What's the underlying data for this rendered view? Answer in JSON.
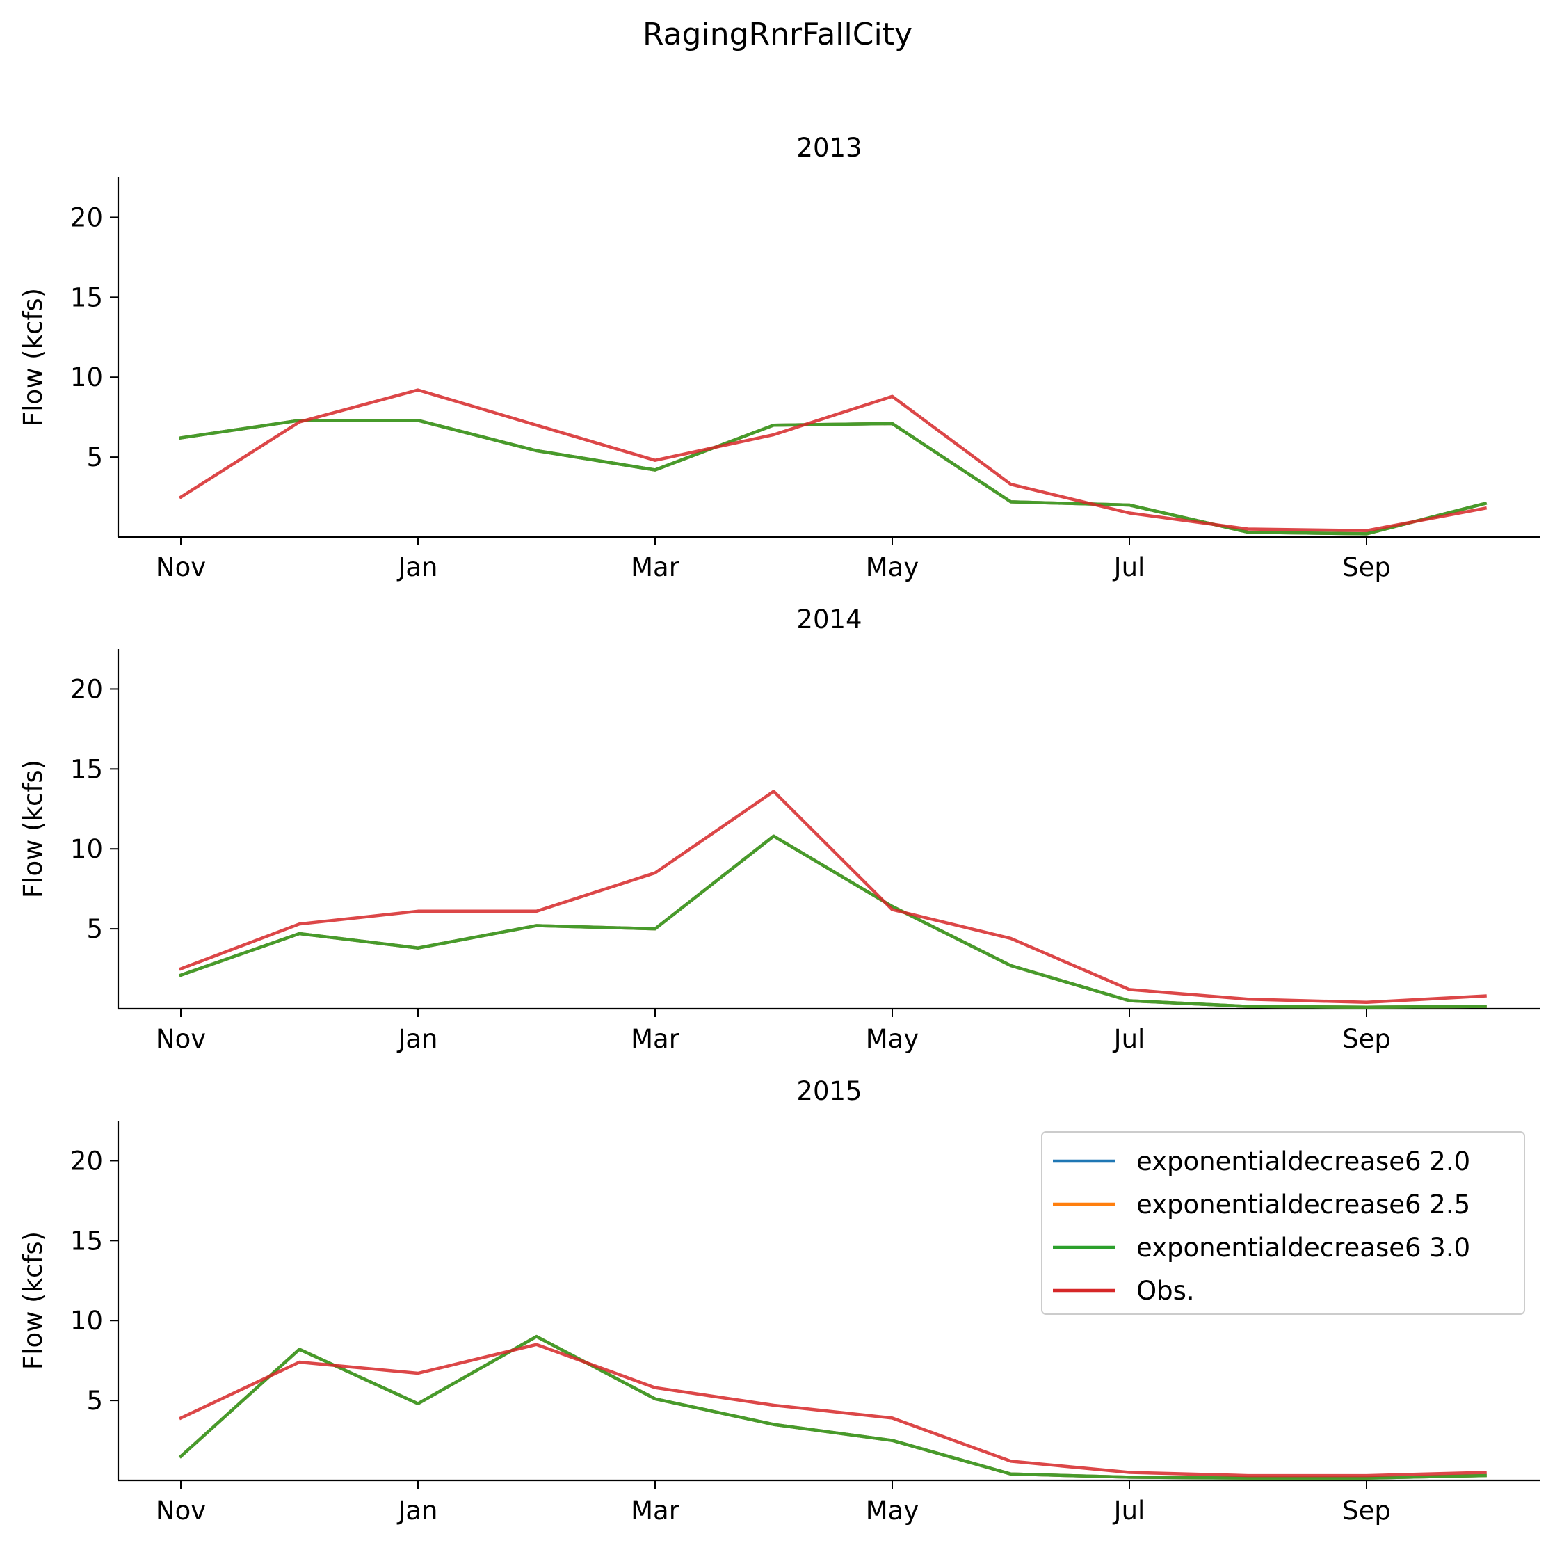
{
  "figure": {
    "title": "RagingRnrFallCity"
  },
  "chart_data": [
    {
      "type": "line",
      "title": "2013",
      "xlabel": "",
      "ylabel": "Flow (kcfs)",
      "ylim": [
        0,
        22.5
      ],
      "yticks": [
        5,
        10,
        15,
        20
      ],
      "xtick_labels": [
        "Nov",
        "Jan",
        "Mar",
        "May",
        "Jul",
        "Sep"
      ],
      "categories": [
        "Nov",
        "Dec",
        "Jan",
        "Feb",
        "Mar",
        "Apr",
        "May",
        "Jun",
        "Jul",
        "Aug",
        "Sep",
        "Oct"
      ],
      "series": [
        {
          "name": "exponentialdecrease6 2.0",
          "color": "#1f77b4",
          "values": [
            6.2,
            7.3,
            7.3,
            5.4,
            4.2,
            7.0,
            7.1,
            2.2,
            2.0,
            0.3,
            0.2,
            2.1
          ]
        },
        {
          "name": "exponentialdecrease6 2.5",
          "color": "#ff7f0e",
          "values": [
            6.2,
            7.3,
            7.3,
            5.4,
            4.2,
            7.0,
            7.1,
            2.2,
            2.0,
            0.3,
            0.2,
            2.1
          ]
        },
        {
          "name": "exponentialdecrease6 3.0",
          "color": "#2ca02c",
          "values": [
            6.2,
            7.3,
            7.3,
            5.4,
            4.2,
            7.0,
            7.1,
            2.2,
            2.0,
            0.3,
            0.2,
            2.1
          ]
        },
        {
          "name": "Obs.",
          "color": "#d62728",
          "values": [
            2.5,
            7.2,
            9.2,
            7.0,
            4.8,
            6.4,
            8.8,
            3.3,
            1.5,
            0.5,
            0.4,
            1.8
          ]
        }
      ]
    },
    {
      "type": "line",
      "title": "2014",
      "xlabel": "",
      "ylabel": "Flow (kcfs)",
      "ylim": [
        0,
        22.5
      ],
      "yticks": [
        5,
        10,
        15,
        20
      ],
      "xtick_labels": [
        "Nov",
        "Jan",
        "Mar",
        "May",
        "Jul",
        "Sep"
      ],
      "categories": [
        "Nov",
        "Dec",
        "Jan",
        "Feb",
        "Mar",
        "Apr",
        "May",
        "Jun",
        "Jul",
        "Aug",
        "Sep",
        "Oct"
      ],
      "series": [
        {
          "name": "exponentialdecrease6 2.0",
          "color": "#1f77b4",
          "values": [
            2.1,
            4.7,
            3.8,
            5.2,
            5.0,
            10.8,
            6.4,
            2.7,
            0.5,
            0.15,
            0.1,
            0.15
          ]
        },
        {
          "name": "exponentialdecrease6 2.5",
          "color": "#ff7f0e",
          "values": [
            2.1,
            4.7,
            3.8,
            5.2,
            5.0,
            10.8,
            6.4,
            2.7,
            0.5,
            0.15,
            0.1,
            0.15
          ]
        },
        {
          "name": "exponentialdecrease6 3.0",
          "color": "#2ca02c",
          "values": [
            2.1,
            4.7,
            3.8,
            5.2,
            5.0,
            10.8,
            6.4,
            2.7,
            0.5,
            0.15,
            0.1,
            0.15
          ]
        },
        {
          "name": "Obs.",
          "color": "#d62728",
          "values": [
            2.5,
            5.3,
            6.1,
            6.1,
            8.5,
            13.6,
            6.2,
            4.4,
            1.2,
            0.6,
            0.4,
            0.8
          ]
        }
      ]
    },
    {
      "type": "line",
      "title": "2015",
      "xlabel": "",
      "ylabel": "Flow (kcfs)",
      "ylim": [
        0,
        22.5
      ],
      "yticks": [
        5,
        10,
        15,
        20
      ],
      "xtick_labels": [
        "Nov",
        "Jan",
        "Mar",
        "May",
        "Jul",
        "Sep"
      ],
      "categories": [
        "Nov",
        "Dec",
        "Jan",
        "Feb",
        "Mar",
        "Apr",
        "May",
        "Jun",
        "Jul",
        "Aug",
        "Sep",
        "Oct"
      ],
      "legend": {
        "location": "upper-right"
      },
      "series": [
        {
          "name": "exponentialdecrease6 2.0",
          "color": "#1f77b4",
          "values": [
            1.5,
            8.2,
            4.8,
            9.0,
            5.1,
            3.5,
            2.5,
            0.4,
            0.2,
            0.15,
            0.15,
            0.3
          ]
        },
        {
          "name": "exponentialdecrease6 2.5",
          "color": "#ff7f0e",
          "values": [
            1.5,
            8.2,
            4.8,
            9.0,
            5.1,
            3.5,
            2.5,
            0.4,
            0.2,
            0.15,
            0.15,
            0.3
          ]
        },
        {
          "name": "exponentialdecrease6 3.0",
          "color": "#2ca02c",
          "values": [
            1.5,
            8.2,
            4.8,
            9.0,
            5.1,
            3.5,
            2.5,
            0.4,
            0.2,
            0.15,
            0.15,
            0.3
          ]
        },
        {
          "name": "Obs.",
          "color": "#d62728",
          "values": [
            3.9,
            7.4,
            6.7,
            8.5,
            5.8,
            4.7,
            3.9,
            1.2,
            0.5,
            0.3,
            0.3,
            0.5
          ]
        }
      ]
    }
  ]
}
